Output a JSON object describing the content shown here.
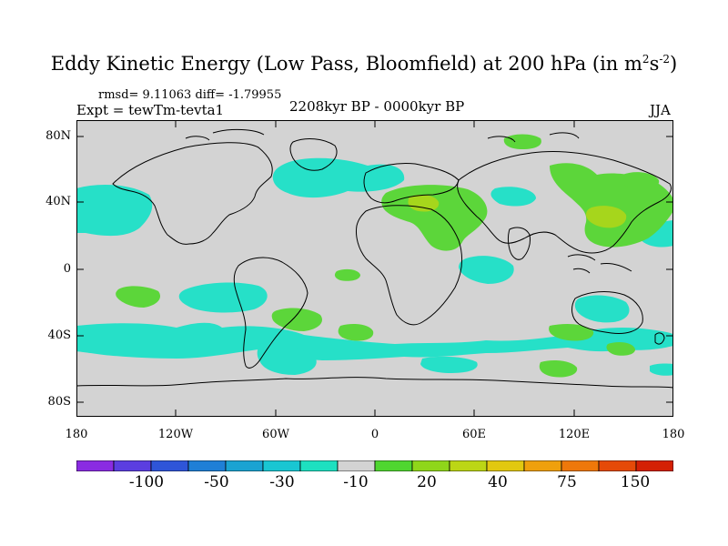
{
  "title": {
    "main": "Eddy Kinetic Energy (Low Pass, Bloomfield) at 200 hPa (in m",
    "sup1": "2",
    "mid": "s",
    "sup2": "-2",
    "close": ")"
  },
  "stats_line": "rmsd= 9.11063 diff= -1.79955",
  "experiment": "Expt = tewTm-tevta1",
  "period": "2208kyr BP - 0000kyr BP",
  "season": "JJA",
  "lat_labels": [
    "80N",
    "40N",
    "0",
    "40S",
    "80S"
  ],
  "lon_labels": [
    "180",
    "120W",
    "60W",
    "0",
    "60E",
    "120E",
    "180"
  ],
  "colorbar": {
    "colors": [
      "#8a2be2",
      "#5b3ee0",
      "#2f55d8",
      "#1f7fd6",
      "#1aa3d2",
      "#19c6d2",
      "#1de0c0",
      "#d3d3d3",
      "#4fd630",
      "#8fd61a",
      "#bcd615",
      "#e2c810",
      "#efa00c",
      "#ee780a",
      "#e54a08",
      "#d42004"
    ],
    "labels": [
      "-100",
      "-50",
      "-30",
      "-10",
      "20",
      "40",
      "75",
      "150"
    ]
  },
  "palette": {
    "land_ocean_bg": "#d3d3d3",
    "cyan_fill": "#26e0c8",
    "green_fill": "#5cd63a",
    "yellow_green_fill": "#a6d61c"
  }
}
